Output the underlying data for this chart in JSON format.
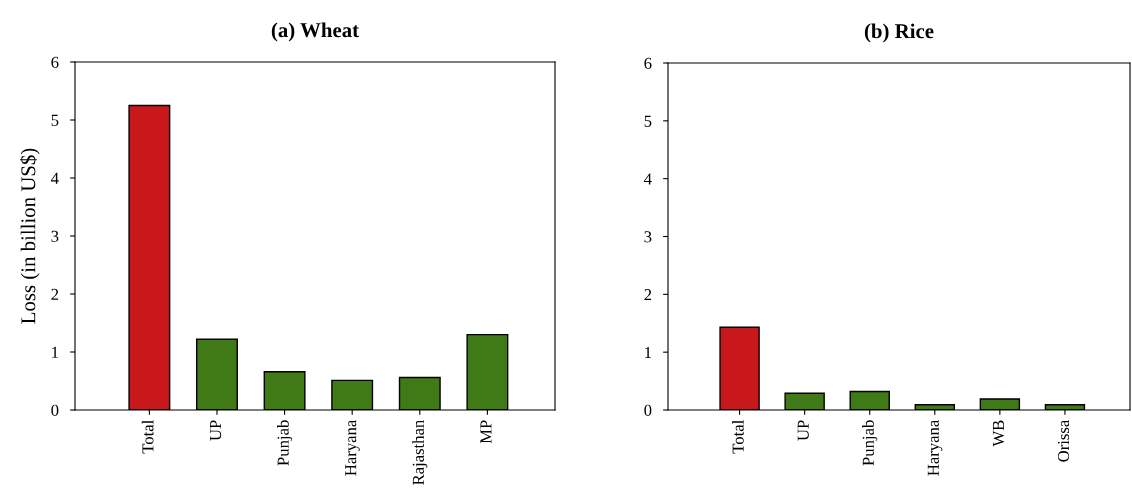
{
  "chart_data": [
    {
      "type": "bar",
      "title": "(a) Wheat",
      "ylabel": "Loss (in billion US$)",
      "categories": [
        "Total",
        "UP",
        "Punjab",
        "Haryana",
        "Rajasthan",
        "MP"
      ],
      "values": [
        5.25,
        1.22,
        0.66,
        0.51,
        0.56,
        1.3
      ],
      "colors": [
        "#c8181c",
        "#3f7a16",
        "#3f7a16",
        "#3f7a16",
        "#3f7a16",
        "#3f7a16"
      ],
      "ylim": [
        0,
        6
      ],
      "yticks": [
        0,
        1,
        2,
        3,
        4,
        5,
        6
      ],
      "grid": false,
      "legend": false
    },
    {
      "type": "bar",
      "title": "(b) Rice",
      "categories": [
        "Total",
        "UP",
        "Punjab",
        "Haryana",
        "WB",
        "Orissa"
      ],
      "values": [
        1.43,
        0.29,
        0.32,
        0.09,
        0.19,
        0.09
      ],
      "colors": [
        "#c8181c",
        "#3f7a16",
        "#3f7a16",
        "#3f7a16",
        "#3f7a16",
        "#3f7a16"
      ],
      "ylim": [
        0,
        6
      ],
      "yticks": [
        0,
        1,
        2,
        3,
        4,
        5,
        6
      ],
      "grid": false,
      "legend": false
    }
  ]
}
